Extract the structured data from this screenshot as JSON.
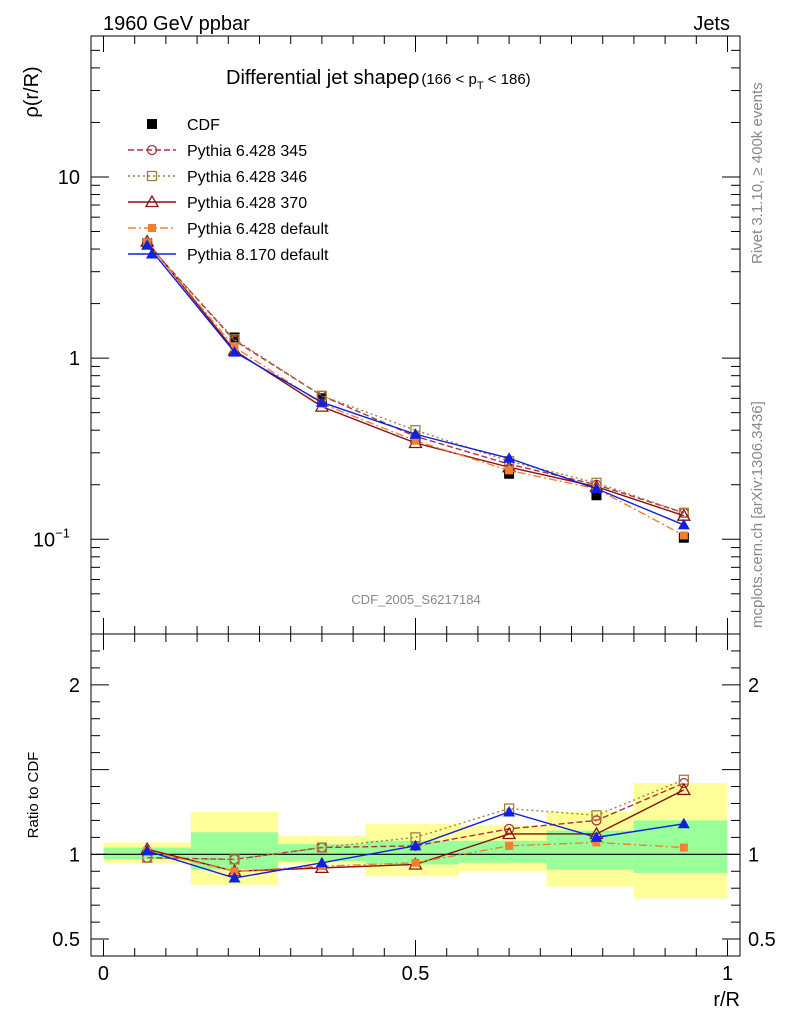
{
  "header": {
    "energy": "1960 GeV ppbar",
    "category": "Jets"
  },
  "side_labels": {
    "rivet": "Rivet 3.1.10, ≥ 400k events",
    "source": "mcplots.cern.ch [arXiv:1306.3436]"
  },
  "watermark": "CDF_2005_S6217184",
  "chart_data": [
    {
      "type": "line",
      "title": "Differential jet shapeρ",
      "subtitle_main": "(166 < p",
      "subtitle_sub": "T",
      "subtitle_end": " < 186)",
      "ylabel": "ρ(r/R)",
      "yscale": "log",
      "ylim": [
        0.03,
        60
      ],
      "xlim": [
        -0.02,
        1.02
      ],
      "y_ticks": [
        {
          "value": 10,
          "label": "10"
        },
        {
          "value": 1,
          "label": "1"
        },
        {
          "value": 0.1,
          "label": "10",
          "sup": "−1"
        }
      ],
      "x": [
        0.07,
        0.21,
        0.35,
        0.5,
        0.65,
        0.79,
        0.93
      ],
      "x_bins": [
        [
          0.0,
          0.14
        ],
        [
          0.14,
          0.28
        ],
        [
          0.28,
          0.42
        ],
        [
          0.42,
          0.57
        ],
        [
          0.57,
          0.71
        ],
        [
          0.71,
          0.85
        ],
        [
          0.85,
          1.0
        ]
      ],
      "legend_position": "top-left",
      "series": [
        {
          "name": "CDF",
          "color": "#000000",
          "dash": "none",
          "marker": "filled-square",
          "values": [
            4.3,
            1.3,
            0.6,
            0.36,
            0.23,
            0.175,
            0.102
          ]
        },
        {
          "name": "Pythia 6.428 345",
          "color": "#b03040",
          "dash": "6,3",
          "marker": "open-circle",
          "values": [
            4.3,
            1.25,
            0.62,
            0.37,
            0.26,
            0.2,
            0.14
          ]
        },
        {
          "name": "Pythia 6.428 346",
          "color": "#a08040",
          "dash": "2,3",
          "marker": "open-square",
          "values": [
            4.25,
            1.27,
            0.62,
            0.4,
            0.27,
            0.205,
            0.14
          ]
        },
        {
          "name": "Pythia 6.428 370",
          "color": "#8b1010",
          "dash": "none",
          "marker": "open-triangle",
          "values": [
            4.4,
            1.1,
            0.54,
            0.34,
            0.25,
            0.195,
            0.135
          ]
        },
        {
          "name": "Pythia 6.428 default",
          "color": "#f08030",
          "dash": "8,3,2,3",
          "marker": "filled-small-square",
          "values": [
            4.35,
            1.15,
            0.56,
            0.35,
            0.24,
            0.19,
            0.105
          ]
        },
        {
          "name": "Pythia 8.170 default",
          "color": "#1020e0",
          "dash": "none",
          "marker": "filled-triangle",
          "values": [
            4.2,
            1.08,
            0.57,
            0.38,
            0.28,
            0.19,
            0.12
          ]
        }
      ]
    },
    {
      "type": "line",
      "ylabel": "Ratio to CDF",
      "xlabel": "r/R",
      "ylim": [
        0.4,
        2.3
      ],
      "xlim": [
        -0.02,
        1.02
      ],
      "reference_line": 1,
      "y_ticks": [
        {
          "value": 2,
          "label": "2"
        },
        {
          "value": 1,
          "label": "1"
        },
        {
          "value": 0.5,
          "label": "0.5"
        }
      ],
      "x_ticks": [
        {
          "value": 0,
          "label": "0"
        },
        {
          "value": 0.5,
          "label": "0.5"
        },
        {
          "value": 1,
          "label": "1"
        }
      ],
      "x": [
        0.07,
        0.21,
        0.35,
        0.5,
        0.65,
        0.79,
        0.93
      ],
      "x_bins": [
        [
          0.0,
          0.14
        ],
        [
          0.14,
          0.28
        ],
        [
          0.28,
          0.42
        ],
        [
          0.42,
          0.57
        ],
        [
          0.57,
          0.71
        ],
        [
          0.71,
          0.85
        ],
        [
          0.85,
          1.0
        ]
      ],
      "band_outer": [
        [
          0.95,
          1.07
        ],
        [
          0.82,
          1.25
        ],
        [
          0.94,
          1.11
        ],
        [
          0.87,
          1.18
        ],
        [
          0.9,
          1.17
        ],
        [
          0.81,
          1.25
        ],
        [
          0.74,
          1.42
        ]
      ],
      "band_inner": [
        [
          0.97,
          1.04
        ],
        [
          0.91,
          1.13
        ],
        [
          0.96,
          1.06
        ],
        [
          0.94,
          1.08
        ],
        [
          0.95,
          1.08
        ],
        [
          0.91,
          1.14
        ],
        [
          0.89,
          1.2
        ]
      ],
      "band_outer_color": "#ffff99",
      "band_inner_color": "#99ff99",
      "series": [
        {
          "name": "Pythia 6.428 345",
          "color": "#b03040",
          "dash": "6,3",
          "marker": "open-circle",
          "values": [
            0.98,
            0.97,
            1.04,
            1.05,
            1.15,
            1.2,
            1.42
          ]
        },
        {
          "name": "Pythia 6.428 346",
          "color": "#a08040",
          "dash": "2,3",
          "marker": "open-square",
          "values": [
            0.98,
            0.97,
            1.04,
            1.1,
            1.27,
            1.23,
            1.44
          ]
        },
        {
          "name": "Pythia 6.428 370",
          "color": "#8b1010",
          "dash": "none",
          "marker": "open-triangle",
          "values": [
            1.03,
            0.9,
            0.92,
            0.94,
            1.12,
            1.12,
            1.38
          ]
        },
        {
          "name": "Pythia 6.428 default",
          "color": "#f08030",
          "dash": "8,3,2,3",
          "marker": "filled-small-square",
          "values": [
            1.02,
            0.9,
            0.93,
            0.95,
            1.05,
            1.07,
            1.04
          ]
        },
        {
          "name": "Pythia 8.170 default",
          "color": "#1020e0",
          "dash": "none",
          "marker": "filled-triangle",
          "values": [
            1.02,
            0.86,
            0.95,
            1.05,
            1.25,
            1.1,
            1.18
          ]
        }
      ]
    }
  ]
}
